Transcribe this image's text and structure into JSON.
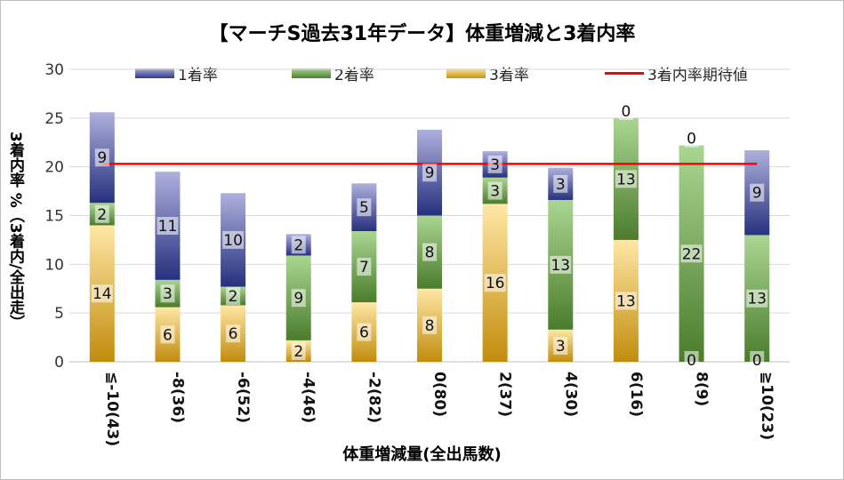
{
  "chart_data": {
    "type": "bar",
    "stacked": true,
    "title": "【マーチS過去31年データ】体重増減と3着内率",
    "xlabel": "体重増減量(全出馬数)",
    "ylabel": "3着内率 %（3着内/全出走）",
    "ylim": [
      0,
      30
    ],
    "yticks": [
      "0",
      "5",
      "10",
      "15",
      "20",
      "25",
      "30"
    ],
    "categories": [
      "≦-10(43)",
      "-8(36)",
      "-6(52)",
      "-4(46)",
      "-2(82)",
      "0(80)",
      "2(37)",
      "4(30)",
      "6(16)",
      "8(9)",
      "≧10(23)"
    ],
    "series": [
      {
        "name": "3着率",
        "key": "third",
        "values": [
          14.0,
          5.6,
          5.8,
          2.2,
          6.1,
          7.5,
          16.2,
          3.3,
          12.5,
          0.0,
          0.0
        ],
        "labels": [
          "14",
          "6",
          "6",
          "2",
          "6",
          "8",
          "16",
          "3",
          "13",
          "0",
          "0"
        ]
      },
      {
        "name": "2着率",
        "key": "second",
        "values": [
          2.3,
          2.8,
          1.9,
          8.7,
          7.3,
          7.5,
          2.7,
          13.3,
          12.5,
          22.2,
          13.0
        ],
        "labels": [
          "2",
          "3",
          "2",
          "9",
          "7",
          "8",
          "3",
          "13",
          "13",
          "22",
          "13"
        ]
      },
      {
        "name": "1着率",
        "key": "first",
        "values": [
          9.3,
          11.1,
          9.6,
          2.2,
          4.9,
          8.8,
          2.7,
          3.3,
          0.0,
          0.0,
          8.7
        ],
        "labels": [
          "9",
          "11",
          "10",
          "2",
          "5",
          "9",
          "3",
          "3",
          "0",
          "0",
          "9"
        ]
      }
    ],
    "expectation": {
      "name": "3着内率期待値",
      "value": 20.3
    },
    "legend": [
      "1着率",
      "2着率",
      "3着率",
      "3着内率期待値"
    ],
    "colors": {
      "first": "#3d4a9c",
      "second": "#5f9a3e",
      "third": "#e8b84a",
      "expectation": "#ff0000"
    }
  }
}
